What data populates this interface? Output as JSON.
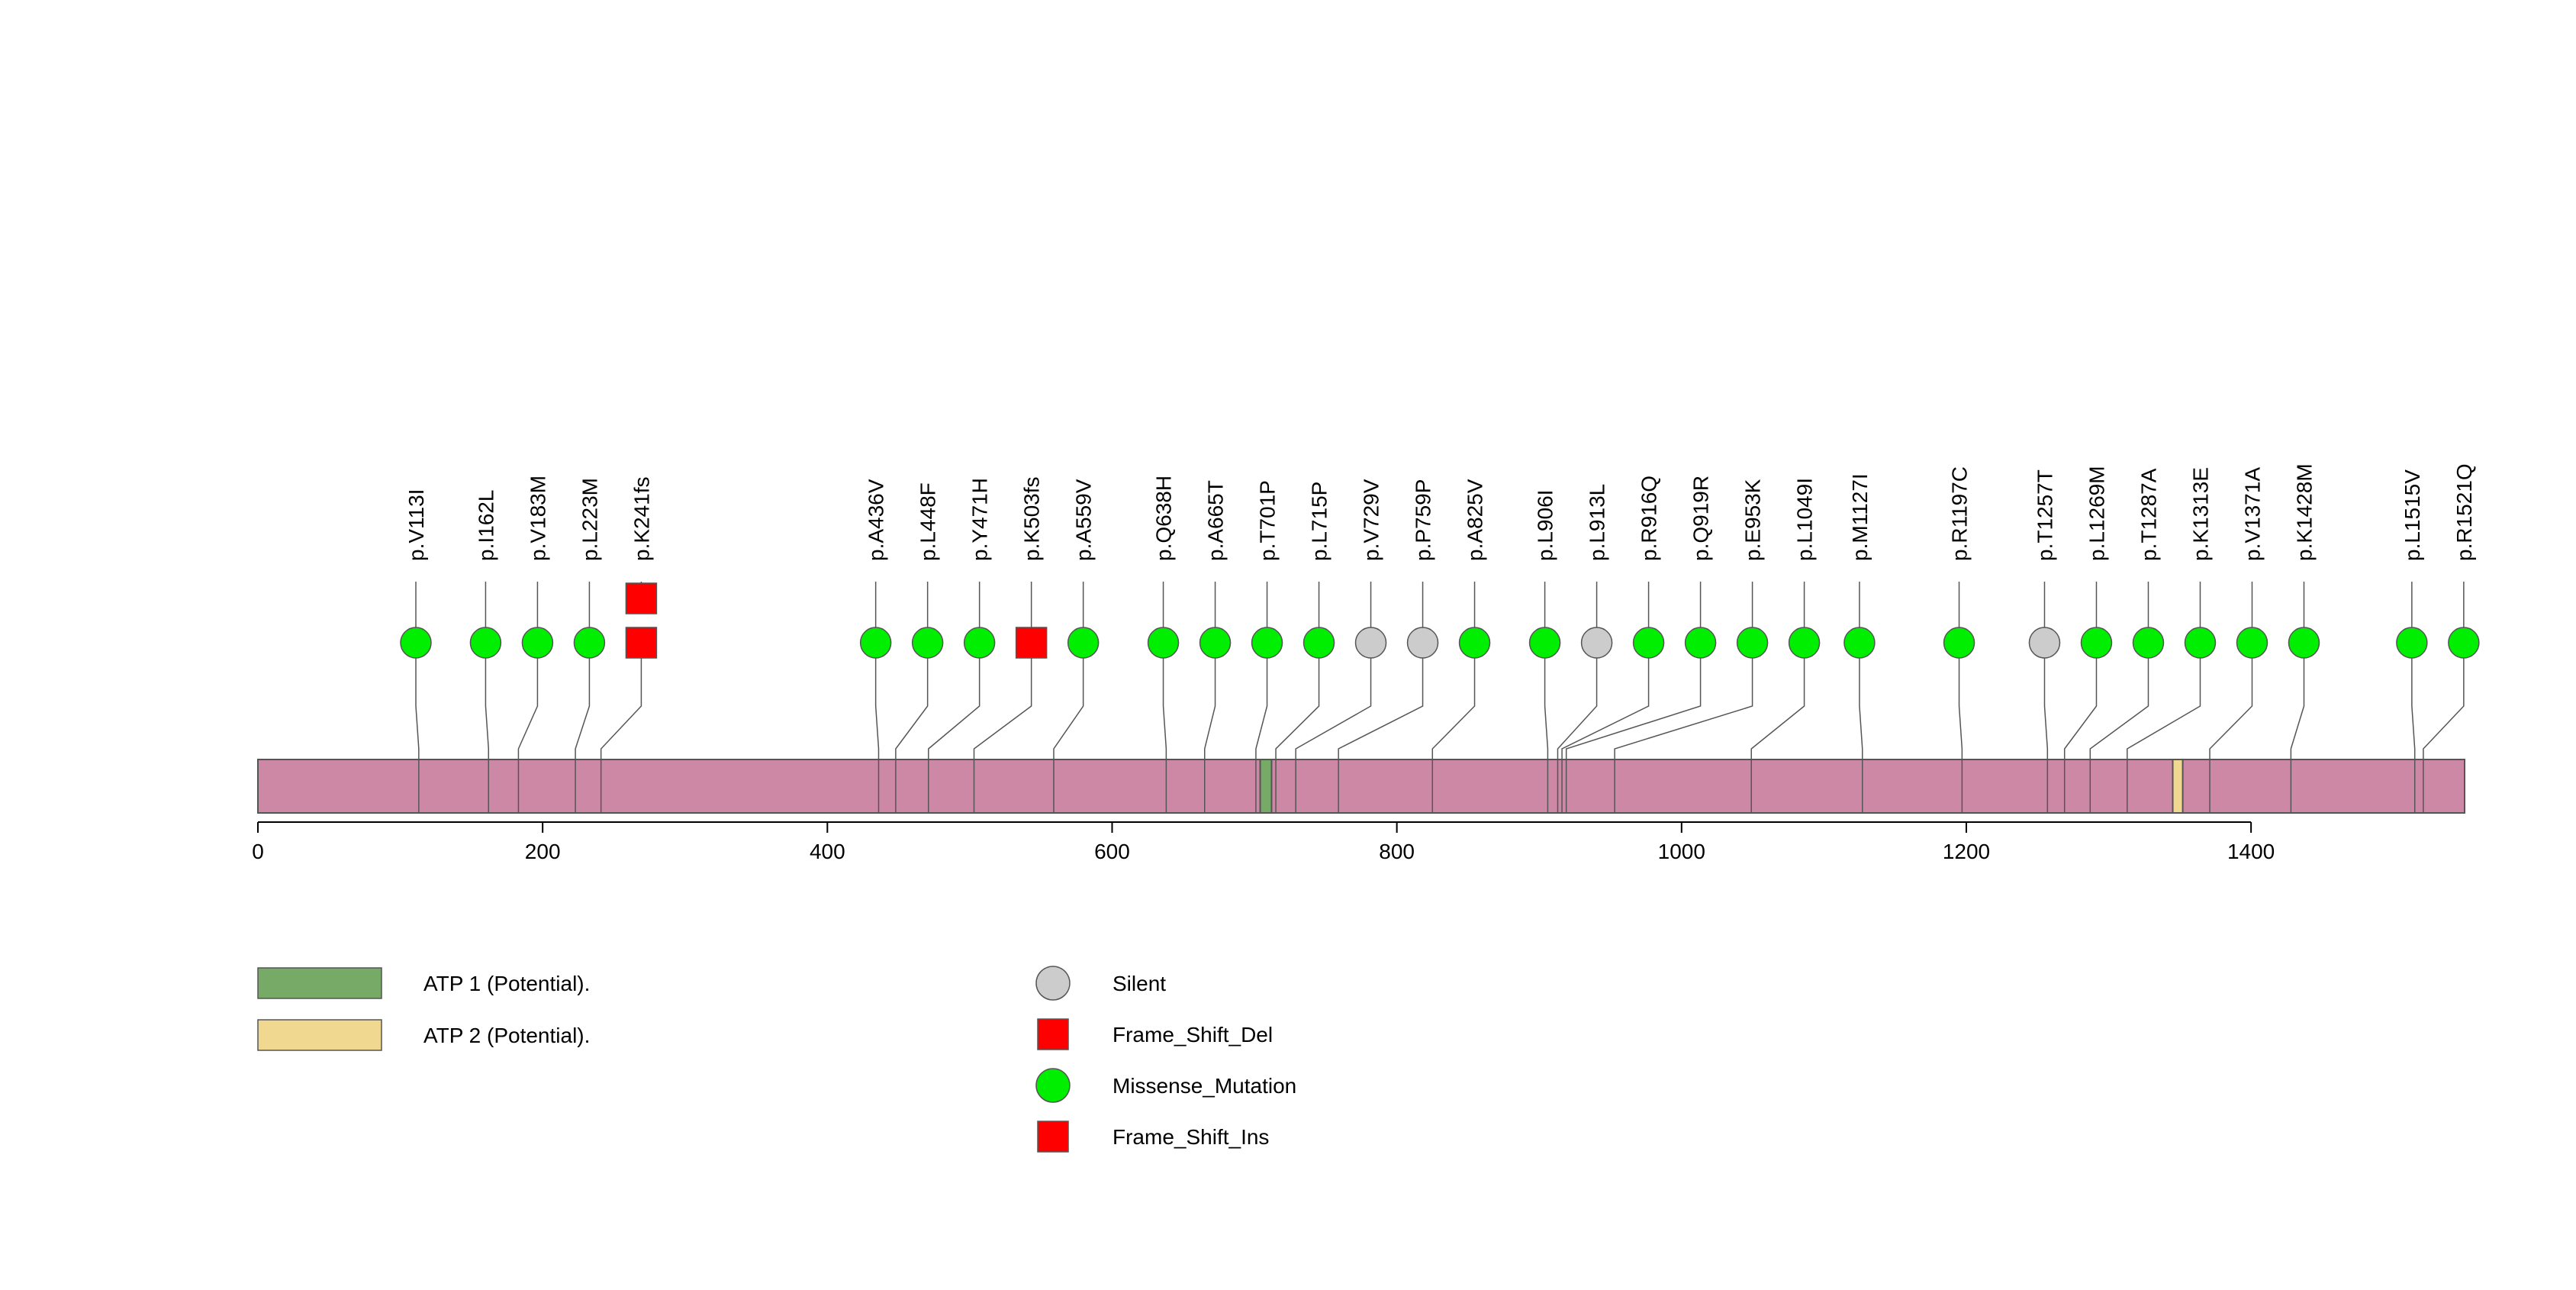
{
  "chart_data": {
    "type": "lollipop",
    "protein_length": 1550,
    "x_axis": {
      "range": [
        0,
        1550
      ],
      "ticks": [
        0,
        200,
        400,
        600,
        800,
        1000,
        1200,
        1400
      ]
    },
    "domains": [
      {
        "name": "ATP 1 (Potential).",
        "start": 704,
        "end": 712,
        "color": "#77aa66"
      },
      {
        "name": "ATP 2 (Potential).",
        "start": 1345,
        "end": 1352,
        "color": "#f0d890"
      }
    ],
    "mutation_types": [
      {
        "name": "Silent",
        "shape": "circle",
        "color": "#cccccc"
      },
      {
        "name": "Frame_Shift_Del",
        "shape": "square",
        "color": "#ff0000"
      },
      {
        "name": "Missense_Mutation",
        "shape": "circle",
        "color": "#00ee00"
      },
      {
        "name": "Frame_Shift_Ins",
        "shape": "square",
        "color": "#ff0000"
      }
    ],
    "mutations": [
      {
        "label": "p.V113I",
        "position": 113,
        "types": [
          "Missense_Mutation"
        ]
      },
      {
        "label": "p.I162L",
        "position": 162,
        "types": [
          "Missense_Mutation"
        ]
      },
      {
        "label": "p.V183M",
        "position": 183,
        "types": [
          "Missense_Mutation"
        ]
      },
      {
        "label": "p.L223M",
        "position": 223,
        "types": [
          "Missense_Mutation"
        ]
      },
      {
        "label": "p.K241fs",
        "position": 241,
        "types": [
          "Frame_Shift_Del",
          "Frame_Shift_Ins"
        ]
      },
      {
        "label": "p.A436V",
        "position": 436,
        "types": [
          "Missense_Mutation"
        ]
      },
      {
        "label": "p.L448F",
        "position": 448,
        "types": [
          "Missense_Mutation"
        ]
      },
      {
        "label": "p.Y471H",
        "position": 471,
        "types": [
          "Missense_Mutation"
        ]
      },
      {
        "label": "p.K503fs",
        "position": 503,
        "types": [
          "Frame_Shift_Del"
        ]
      },
      {
        "label": "p.A559V",
        "position": 559,
        "types": [
          "Missense_Mutation"
        ]
      },
      {
        "label": "p.Q638H",
        "position": 638,
        "types": [
          "Missense_Mutation"
        ]
      },
      {
        "label": "p.A665T",
        "position": 665,
        "types": [
          "Missense_Mutation"
        ]
      },
      {
        "label": "p.T701P",
        "position": 701,
        "types": [
          "Missense_Mutation"
        ]
      },
      {
        "label": "p.L715P",
        "position": 715,
        "types": [
          "Missense_Mutation"
        ]
      },
      {
        "label": "p.V729V",
        "position": 729,
        "types": [
          "Silent"
        ]
      },
      {
        "label": "p.P759P",
        "position": 759,
        "types": [
          "Silent"
        ]
      },
      {
        "label": "p.A825V",
        "position": 825,
        "types": [
          "Missense_Mutation"
        ]
      },
      {
        "label": "p.L906I",
        "position": 906,
        "types": [
          "Missense_Mutation"
        ]
      },
      {
        "label": "p.L913L",
        "position": 913,
        "types": [
          "Silent"
        ]
      },
      {
        "label": "p.R916Q",
        "position": 916,
        "types": [
          "Missense_Mutation"
        ]
      },
      {
        "label": "p.Q919R",
        "position": 919,
        "types": [
          "Missense_Mutation"
        ]
      },
      {
        "label": "p.E953K",
        "position": 953,
        "types": [
          "Missense_Mutation"
        ]
      },
      {
        "label": "p.L1049I",
        "position": 1049,
        "types": [
          "Missense_Mutation"
        ]
      },
      {
        "label": "p.M1127I",
        "position": 1127,
        "types": [
          "Missense_Mutation"
        ]
      },
      {
        "label": "p.R1197C",
        "position": 1197,
        "types": [
          "Missense_Mutation"
        ]
      },
      {
        "label": "p.T1257T",
        "position": 1257,
        "types": [
          "Silent"
        ]
      },
      {
        "label": "p.L1269M",
        "position": 1269,
        "types": [
          "Missense_Mutation"
        ]
      },
      {
        "label": "p.T1287A",
        "position": 1287,
        "types": [
          "Missense_Mutation"
        ]
      },
      {
        "label": "p.K1313E",
        "position": 1313,
        "types": [
          "Missense_Mutation"
        ]
      },
      {
        "label": "p.V1371A",
        "position": 1371,
        "types": [
          "Missense_Mutation"
        ]
      },
      {
        "label": "p.K1428M",
        "position": 1428,
        "types": [
          "Missense_Mutation"
        ]
      },
      {
        "label": "p.L1515V",
        "position": 1515,
        "types": [
          "Missense_Mutation"
        ]
      },
      {
        "label": "p.R1521Q",
        "position": 1521,
        "types": [
          "Missense_Mutation"
        ]
      }
    ],
    "colors": {
      "protein_bar": "#cc88a5",
      "stroke": "#555555"
    }
  }
}
